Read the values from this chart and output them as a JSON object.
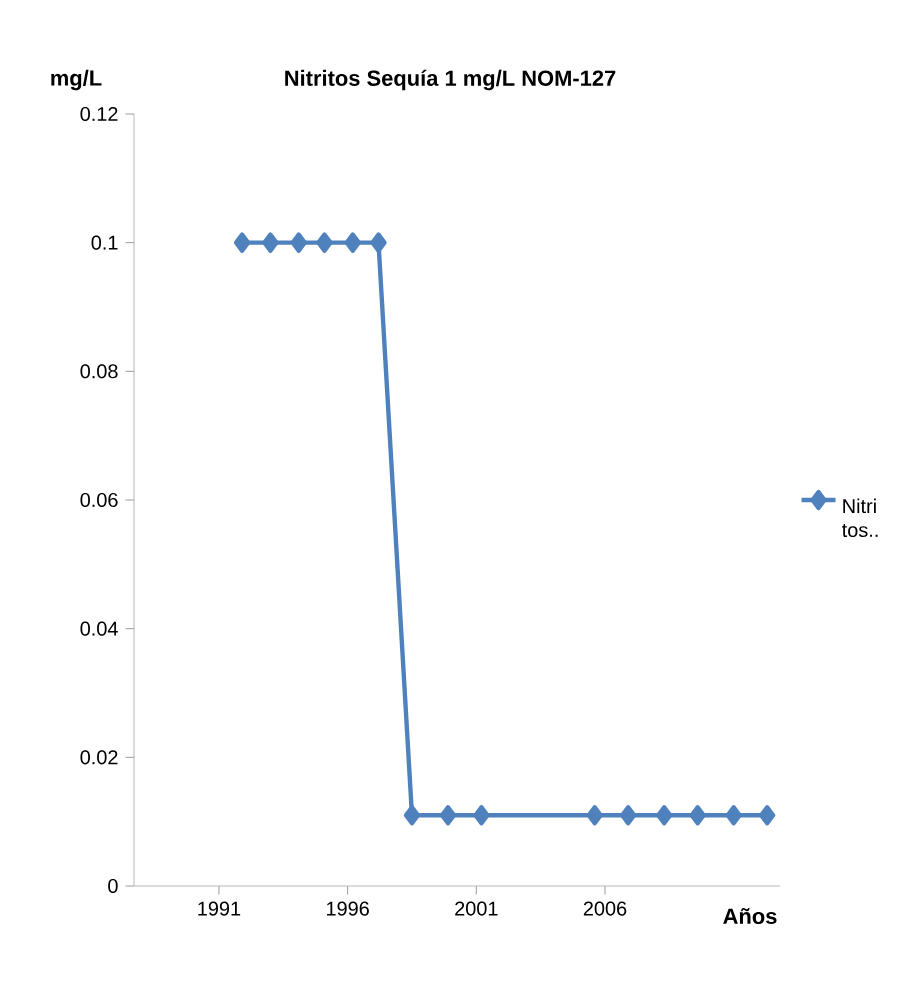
{
  "chart_data": {
    "type": "line",
    "title": "Nitritos Sequía 1 mg/L NOM-127",
    "xlabel": "Años",
    "ylabel": "mg/L",
    "x": [
      1991.9,
      1993.0,
      1994.1,
      1995.1,
      1996.2,
      1997.2,
      1998.5,
      1999.9,
      2001.2,
      2005.6,
      2006.9,
      2008.3,
      2009.6,
      2011.0,
      2012.3
    ],
    "series": [
      {
        "name": "Nitri tos..",
        "color": "#4f81bd",
        "values": [
          0.1,
          0.1,
          0.1,
          0.1,
          0.1,
          0.1,
          0.011,
          0.011,
          0.011,
          0.011,
          0.011,
          0.011,
          0.011,
          0.011,
          0.011
        ]
      }
    ],
    "xlim": [
      1987.7,
      2012.8
    ],
    "xticks": [
      1991,
      1996,
      2001,
      2006
    ],
    "ylim": [
      0,
      0.12
    ],
    "yticks": [
      0,
      0.02,
      0.04,
      0.06,
      0.08,
      0.1,
      0.12
    ],
    "grid": false,
    "legend": "right",
    "marker": "diamond",
    "line_style": "solid"
  }
}
